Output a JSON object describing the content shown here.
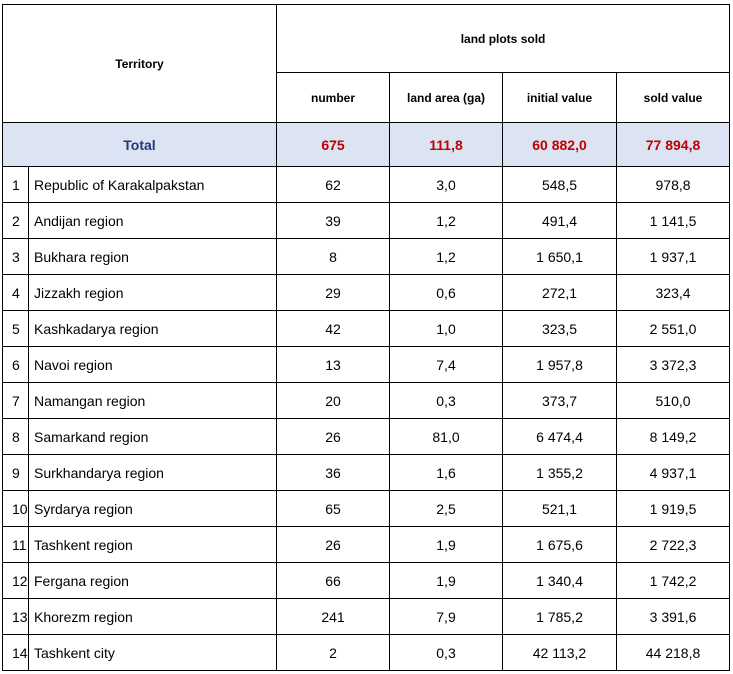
{
  "header": {
    "territory": "Territory",
    "group": "land plots sold",
    "columns": [
      "number",
      "land area (ga)",
      "initial value",
      "sold value"
    ]
  },
  "total": {
    "label": "Total",
    "values": [
      "675",
      "111,8",
      "60 882,0",
      "77 894,8"
    ]
  },
  "rows": [
    {
      "idx": "1",
      "name": "Republic of Karakalpakstan",
      "values": [
        "62",
        "3,0",
        "548,5",
        "978,8"
      ]
    },
    {
      "idx": "2",
      "name": "Andijan region",
      "values": [
        "39",
        "1,2",
        "491,4",
        "1 141,5"
      ]
    },
    {
      "idx": "3",
      "name": "Bukhara region",
      "values": [
        "8",
        "1,2",
        "1 650,1",
        "1 937,1"
      ]
    },
    {
      "idx": "4",
      "name": "Jizzakh region",
      "values": [
        "29",
        "0,6",
        "272,1",
        "323,4"
      ]
    },
    {
      "idx": "5",
      "name": "Kashkadarya region",
      "values": [
        "42",
        "1,0",
        "323,5",
        "2 551,0"
      ]
    },
    {
      "idx": "6",
      "name": "Navoi region",
      "values": [
        "13",
        "7,4",
        "1 957,8",
        "3 372,3"
      ]
    },
    {
      "idx": "7",
      "name": "Namangan region",
      "values": [
        "20",
        "0,3",
        "373,7",
        "510,0"
      ]
    },
    {
      "idx": "8",
      "name": "Samarkand region",
      "values": [
        "26",
        "81,0",
        "6 474,4",
        "8 149,2"
      ]
    },
    {
      "idx": "9",
      "name": "Surkhandarya region",
      "values": [
        "36",
        "1,6",
        "1 355,2",
        "4 937,1"
      ]
    },
    {
      "idx": "10",
      "name": "Syrdarya region",
      "values": [
        "65",
        "2,5",
        "521,1",
        "1 919,5"
      ]
    },
    {
      "idx": "11",
      "name": "Tashkent region",
      "values": [
        "26",
        "1,9",
        "1 675,6",
        "2 722,3"
      ]
    },
    {
      "idx": "12",
      "name": "Fergana region",
      "values": [
        "66",
        "1,9",
        "1 340,4",
        "1 742,2"
      ]
    },
    {
      "idx": "13",
      "name": "Khorezm region",
      "values": [
        "241",
        "7,9",
        "1 785,2",
        "3 391,6"
      ]
    },
    {
      "idx": "14",
      "name": "Tashkent city",
      "values": [
        "2",
        "0,3",
        "42 113,2",
        "44 218,8"
      ]
    }
  ],
  "colors": {
    "total_bg": "#dce3f2",
    "total_value": "#c00000",
    "total_label": "#1f3a78"
  }
}
